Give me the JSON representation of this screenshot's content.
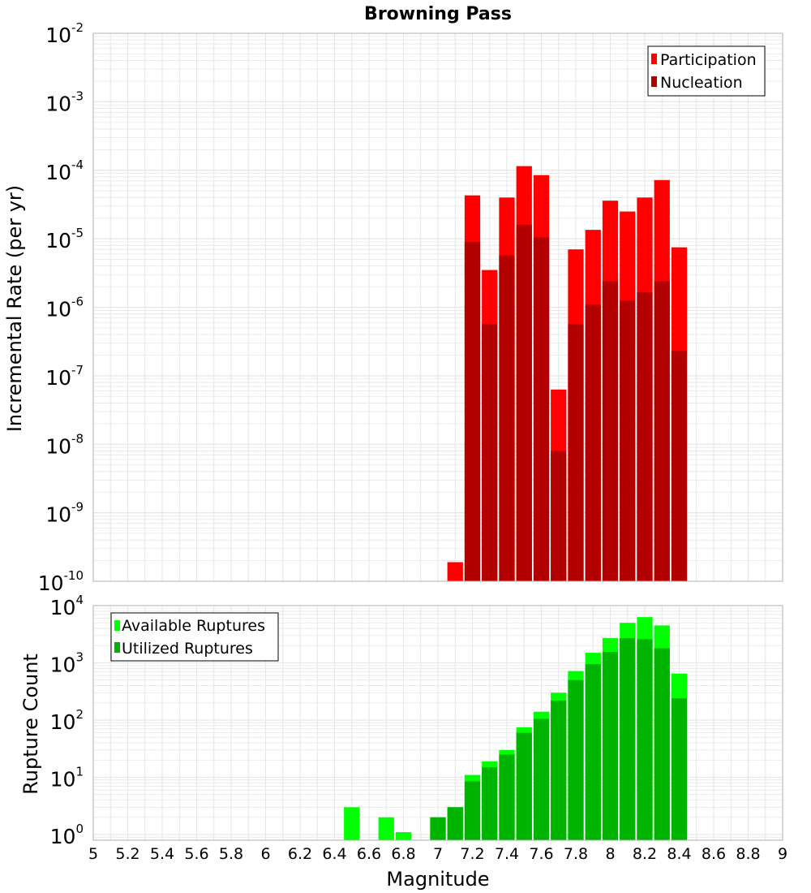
{
  "title": "Browning Pass",
  "xlabel": "Magnitude",
  "chart_data": [
    {
      "type": "bar",
      "name": "incremental-rate",
      "ylabel": "Incremental Rate (per yr)",
      "yscale": "log",
      "ylim_exp": [
        -10,
        -2
      ],
      "xlim": [
        5,
        9
      ],
      "bin_width": 0.1,
      "legend": {
        "placement": "top-right"
      },
      "series": [
        {
          "name": "Participation",
          "color": "#ff0000",
          "x": [
            7.1,
            7.2,
            7.3,
            7.4,
            7.5,
            7.6,
            7.7,
            7.8,
            7.9,
            8.0,
            8.1,
            8.2,
            8.3,
            8.4
          ],
          "values": [
            1.9e-10,
            4.3e-05,
            3.5e-06,
            4e-05,
            0.000115,
            8.5e-05,
            6.3e-08,
            7e-06,
            1.35e-05,
            3.6e-05,
            2.5e-05,
            4e-05,
            7.2e-05,
            7.5e-06
          ]
        },
        {
          "name": "Nucleation",
          "color": "#b30000",
          "x": [
            7.2,
            7.3,
            7.4,
            7.5,
            7.6,
            7.7,
            7.8,
            7.9,
            8.0,
            8.1,
            8.2,
            8.3,
            8.4
          ],
          "values": [
            9e-06,
            5.7e-07,
            5.7e-06,
            1.6e-05,
            1.05e-05,
            8e-09,
            5.7e-07,
            1.1e-06,
            2.4e-06,
            1.25e-06,
            1.65e-06,
            2.4e-06,
            2.3e-07
          ]
        }
      ]
    },
    {
      "type": "bar",
      "name": "rupture-count",
      "ylabel": "Rupture Count",
      "yscale": "log",
      "ylim_exp": [
        -0.1,
        4
      ],
      "xlim": [
        5,
        9
      ],
      "bin_width": 0.1,
      "legend": {
        "placement": "top-left"
      },
      "series": [
        {
          "name": "Available Ruptures",
          "color": "#00ff00",
          "x": [
            6.5,
            6.7,
            6.8,
            7.0,
            7.1,
            7.2,
            7.3,
            7.4,
            7.5,
            7.6,
            7.7,
            7.8,
            7.9,
            8.0,
            8.1,
            8.2,
            8.3,
            8.4
          ],
          "values": [
            3,
            2,
            1.1,
            2,
            3,
            11,
            19,
            30,
            75,
            140,
            300,
            720,
            1500,
            2700,
            5000,
            6300,
            4500,
            650
          ]
        },
        {
          "name": "Utilized Ruptures",
          "color": "#00b300",
          "x": [
            7.0,
            7.1,
            7.2,
            7.3,
            7.4,
            7.5,
            7.6,
            7.7,
            7.8,
            7.9,
            8.0,
            8.1,
            8.2,
            8.3,
            8.4
          ],
          "values": [
            2,
            3,
            8.5,
            15,
            25,
            60,
            105,
            220,
            500,
            950,
            1550,
            2700,
            2600,
            1800,
            240
          ]
        }
      ]
    }
  ],
  "x_ticks": [
    "5",
    "5.2",
    "5.4",
    "5.6",
    "5.8",
    "6",
    "6.2",
    "6.4",
    "6.6",
    "6.8",
    "7",
    "7.2",
    "7.4",
    "7.6",
    "7.8",
    "8",
    "8.2",
    "8.4",
    "8.6",
    "8.8",
    "9"
  ],
  "top_y_exponents": [
    "-2",
    "-3",
    "-4",
    "-5",
    "-6",
    "-7",
    "-8",
    "-9",
    "-10"
  ],
  "bottom_y_exponents": [
    "4",
    "3",
    "2",
    "1",
    "0"
  ],
  "y_tick_base": "10",
  "colors": {
    "grid": "#e6e6e6",
    "frame": "#b0b0b0",
    "bar_gap": "#ffffff"
  }
}
